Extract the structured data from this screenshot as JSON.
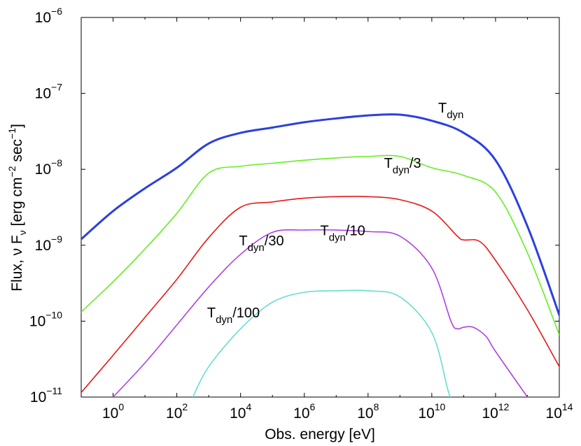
{
  "chart_data": {
    "type": "line",
    "title": "",
    "xlabel": "Obs. energy [eV]",
    "ylabel": "Flux, ν F_ν [erg cm^-2 sec^-1]",
    "ylabel_parts": {
      "a": "Flux, ν F",
      "b": "ν",
      "c": " [erg cm",
      "d": "−2",
      "e": " sec",
      "f": "−1",
      "g": "]"
    },
    "xscale": "log",
    "yscale": "log",
    "xlim_log10": [
      -1,
      14
    ],
    "ylim_log10": [
      -11,
      -6
    ],
    "x_ticks": [
      {
        "base": "10",
        "exp": "0",
        "value": 0
      },
      {
        "base": "10",
        "exp": "2",
        "value": 2
      },
      {
        "base": "10",
        "exp": "4",
        "value": 4
      },
      {
        "base": "10",
        "exp": "6",
        "value": 6
      },
      {
        "base": "10",
        "exp": "8",
        "value": 8
      },
      {
        "base": "10",
        "exp": "10",
        "value": 10
      },
      {
        "base": "10",
        "exp": "12",
        "value": 12
      },
      {
        "base": "10",
        "exp": "14",
        "value": 14
      }
    ],
    "y_ticks": [
      {
        "base": "10",
        "exp": "−11",
        "value": -11
      },
      {
        "base": "10",
        "exp": "−10",
        "value": -10
      },
      {
        "base": "10",
        "exp": "−9",
        "value": -9
      },
      {
        "base": "10",
        "exp": "−8",
        "value": -8
      },
      {
        "base": "10",
        "exp": "−7",
        "value": -7
      },
      {
        "base": "10",
        "exp": "−6",
        "value": -6
      }
    ],
    "grid": false,
    "legend": "none (inline curve labels)",
    "series": [
      {
        "name": "T_dyn",
        "label_main": "T",
        "label_sub": "dyn",
        "label_suffix": "",
        "color": "#2b3fe0",
        "width": 3,
        "label_at": {
          "x_log10": 10.2,
          "y_log10": -7.25
        },
        "points": [
          [
            -1,
            -8.92
          ],
          [
            0,
            -8.55
          ],
          [
            1,
            -8.25
          ],
          [
            2,
            -7.98
          ],
          [
            3,
            -7.66
          ],
          [
            4,
            -7.52
          ],
          [
            5,
            -7.45
          ],
          [
            6,
            -7.38
          ],
          [
            7,
            -7.33
          ],
          [
            8,
            -7.29
          ],
          [
            9,
            -7.28
          ],
          [
            10,
            -7.36
          ],
          [
            11,
            -7.52
          ],
          [
            12,
            -7.88
          ],
          [
            13,
            -8.75
          ],
          [
            14,
            -9.92
          ]
        ]
      },
      {
        "name": "T_dyn/3",
        "label_main": "T",
        "label_sub": "dyn",
        "label_suffix": "/3",
        "color": "#66ee22",
        "width": 1.6,
        "label_at": {
          "x_log10": 8.5,
          "y_log10": -7.98
        },
        "points": [
          [
            -1,
            -9.88
          ],
          [
            0,
            -9.48
          ],
          [
            1,
            -9.05
          ],
          [
            2,
            -8.58
          ],
          [
            3,
            -8.05
          ],
          [
            4,
            -7.96
          ],
          [
            5,
            -7.92
          ],
          [
            6,
            -7.88
          ],
          [
            7,
            -7.85
          ],
          [
            8,
            -7.83
          ],
          [
            9,
            -7.83
          ],
          [
            10,
            -7.98
          ],
          [
            11,
            -8.08
          ],
          [
            12,
            -8.3
          ],
          [
            13,
            -9.1
          ],
          [
            14,
            -10.18
          ]
        ]
      },
      {
        "name": "T_dyn/10",
        "label_main": "T",
        "label_sub": "dyn",
        "label_suffix": "/10",
        "color": "#e81818",
        "width": 1.6,
        "label_at": {
          "x_log10": 6.5,
          "y_log10": -8.87
        },
        "points": [
          [
            -1,
            -10.94
          ],
          [
            0,
            -10.45
          ],
          [
            1,
            -9.95
          ],
          [
            2,
            -9.45
          ],
          [
            3,
            -8.9
          ],
          [
            4,
            -8.5
          ],
          [
            5,
            -8.43
          ],
          [
            6,
            -8.38
          ],
          [
            7,
            -8.36
          ],
          [
            8,
            -8.36
          ],
          [
            9,
            -8.4
          ],
          [
            10,
            -8.55
          ],
          [
            10.8,
            -8.88
          ],
          [
            11,
            -8.93
          ],
          [
            11.5,
            -8.95
          ],
          [
            12,
            -9.2
          ],
          [
            13,
            -9.85
          ],
          [
            14,
            -10.6
          ]
        ]
      },
      {
        "name": "T_dyn/30",
        "label_main": "T",
        "label_sub": "dyn",
        "label_suffix": "/30",
        "color": "#b040e0",
        "width": 1.6,
        "label_at": {
          "x_log10": 3.95,
          "y_log10": -9.0
        },
        "points": [
          [
            0,
            -11.0
          ],
          [
            1,
            -10.55
          ],
          [
            2,
            -10.05
          ],
          [
            3,
            -9.55
          ],
          [
            4,
            -9.12
          ],
          [
            5,
            -8.83
          ],
          [
            6,
            -8.8
          ],
          [
            7,
            -8.8
          ],
          [
            8,
            -8.82
          ],
          [
            9,
            -8.88
          ],
          [
            10,
            -9.3
          ],
          [
            10.6,
            -10.0
          ],
          [
            10.8,
            -10.1
          ],
          [
            11,
            -10.08
          ],
          [
            11.3,
            -10.08
          ],
          [
            11.7,
            -10.2
          ],
          [
            12,
            -10.4
          ],
          [
            13,
            -11.0
          ]
        ]
      },
      {
        "name": "T_dyn/100",
        "label_main": "T",
        "label_sub": "dyn",
        "label_suffix": "/100",
        "color": "#66ddd0",
        "width": 1.6,
        "label_at": {
          "x_log10": 2.95,
          "y_log10": -9.95
        },
        "points": [
          [
            2.5,
            -11.0
          ],
          [
            3,
            -10.6
          ],
          [
            4,
            -10.1
          ],
          [
            5,
            -9.75
          ],
          [
            6,
            -9.62
          ],
          [
            7,
            -9.6
          ],
          [
            8,
            -9.6
          ],
          [
            9,
            -9.68
          ],
          [
            10,
            -10.15
          ],
          [
            10.5,
            -10.9
          ],
          [
            10.6,
            -11.0
          ]
        ]
      }
    ]
  }
}
